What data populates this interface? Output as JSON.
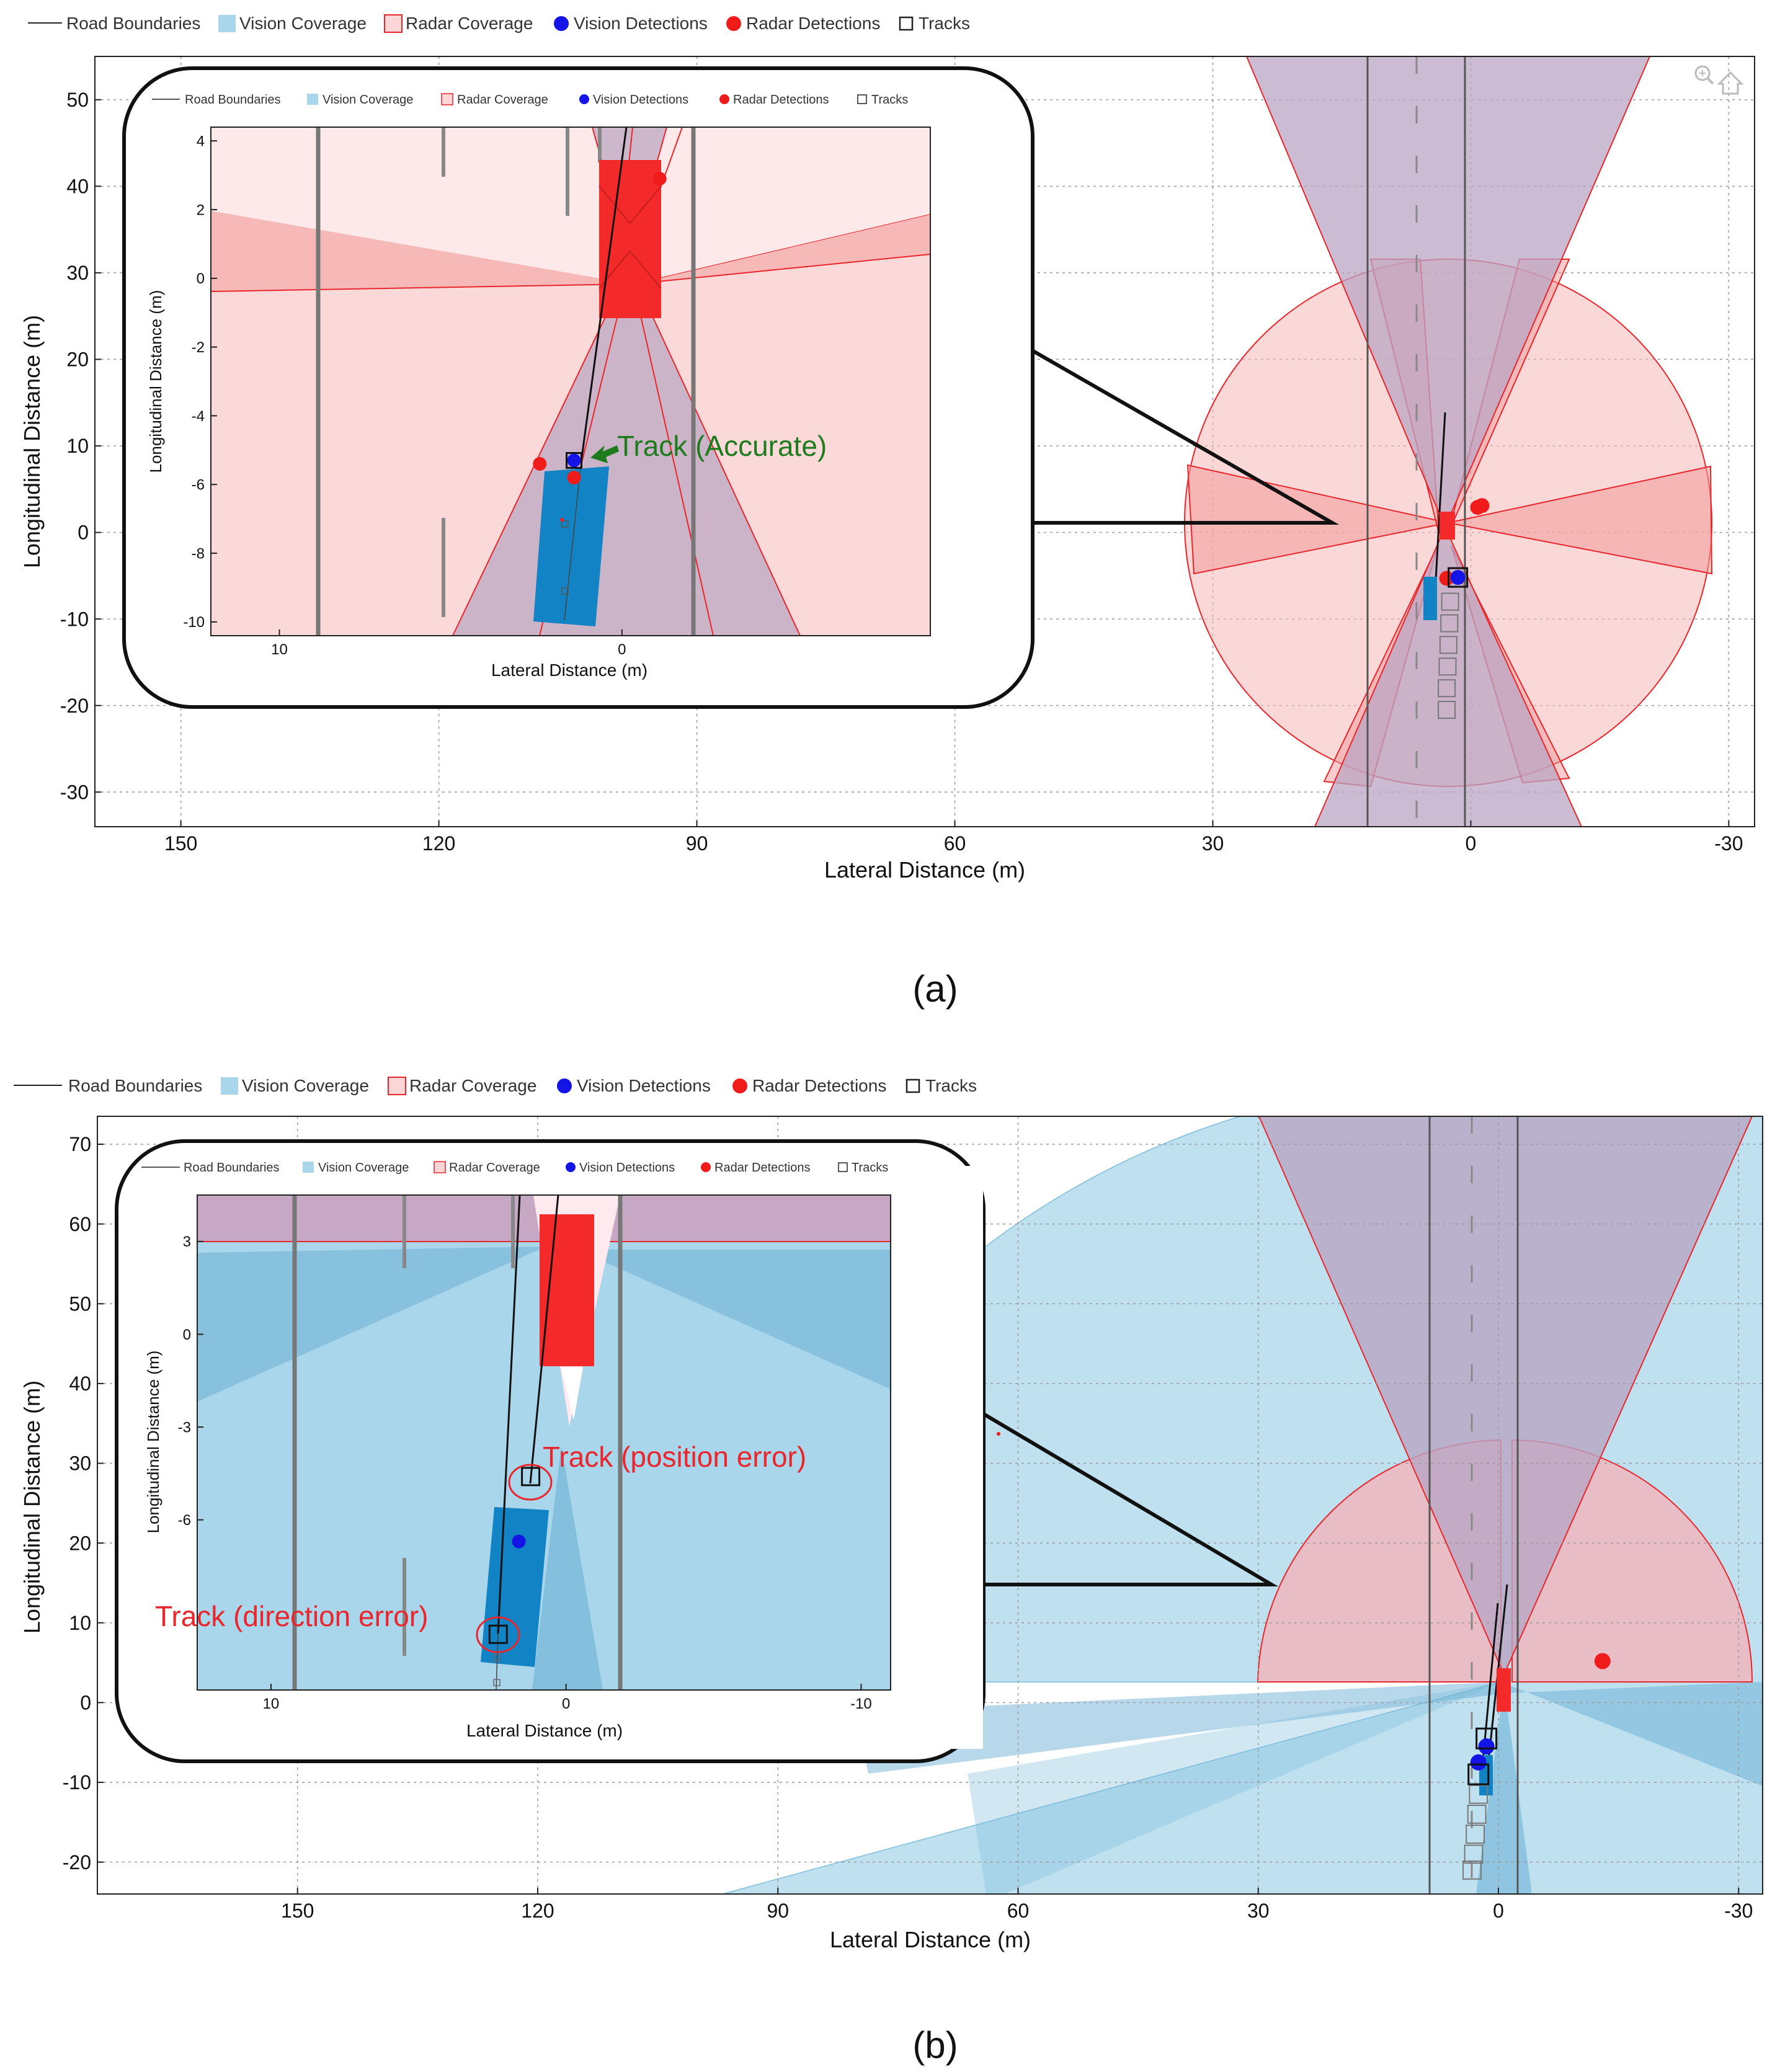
{
  "colors": {
    "radar_fill": "#f7b8b8",
    "radar_stroke": "#e8262b",
    "vision_fill": "#a9d6ea",
    "vision_dark": "#5fa9d1",
    "overlap": "#c9b4c7",
    "vision_det": "#1414e6",
    "radar_det": "#f01c1c",
    "ego_blue": "#1283c4",
    "target_red": "#f42a2a",
    "grid": "#9a9a9a",
    "annot_green": "#1e7b1e",
    "annot_red": "#e8262b"
  },
  "legend": [
    "Road Boundaries",
    "Vision Coverage",
    "Radar Coverage",
    "Vision Detections",
    "Radar Detections",
    "Tracks"
  ],
  "toolbar": {
    "zoom_icon": "zoom-in-icon",
    "home_icon": "home-icon"
  },
  "chart_data": [
    {
      "id": "a",
      "type": "scatter",
      "panel_label": "(a)",
      "xlabel": "Lateral Distance (m)",
      "ylabel": "Longitudinal Distance (m)",
      "xlim": [
        160,
        -33
      ],
      "ylim": [
        -34,
        55
      ],
      "xticks": [
        150,
        120,
        90,
        60,
        30,
        0,
        -30
      ],
      "yticks": [
        50,
        40,
        30,
        20,
        10,
        0,
        -10,
        -20,
        -30
      ],
      "road_boundaries_x": [
        10,
        -2
      ],
      "lane_marker_x": 4,
      "vision_detections": [
        [
          1.5,
          -5.2
        ]
      ],
      "radar_detections": [
        [
          2.8,
          -5.3
        ],
        [
          -0.8,
          2.9
        ],
        [
          -1.3,
          3.1
        ]
      ],
      "tracks": [
        [
          1.5,
          -5.2
        ]
      ],
      "track_history": [
        [
          2.4,
          -8
        ],
        [
          2.5,
          -10.5
        ],
        [
          2.6,
          -13
        ],
        [
          2.7,
          -15.5
        ],
        [
          2.8,
          -18
        ],
        [
          2.8,
          -20.5
        ]
      ],
      "inset": {
        "xlabel": "Lateral Distance (m)",
        "ylabel": "Longitudinal Distance (m)",
        "xlim": [
          12,
          -9
        ],
        "ylim": [
          -10.4,
          4.4
        ],
        "xticks": [
          10,
          0
        ],
        "yticks": [
          4,
          2,
          0,
          -2,
          -4,
          -6,
          -8,
          -10
        ],
        "vision_detections": [
          [
            1.4,
            -5.3
          ]
        ],
        "radar_detections": [
          [
            2.4,
            -5.4
          ],
          [
            1.4,
            -5.8
          ],
          [
            -1.1,
            2.9
          ]
        ],
        "tracks": [
          [
            1.4,
            -5.3
          ]
        ],
        "annotation": "Track (Accurate)"
      }
    },
    {
      "id": "b",
      "type": "scatter",
      "panel_label": "(b)",
      "xlabel": "Lateral Distance (m)",
      "ylabel": "Longitudinal Distance (m)",
      "xlim": [
        175,
        -33
      ],
      "ylim": [
        -24,
        73.5
      ],
      "xticks": [
        150,
        120,
        90,
        60,
        30,
        0,
        -30
      ],
      "yticks": [
        70,
        60,
        50,
        40,
        30,
        20,
        10,
        0,
        -10,
        -20
      ],
      "road_boundaries_x": [
        9,
        -2
      ],
      "lane_marker_x": 3.5,
      "vision_detections": [
        [
          1.5,
          -5.5
        ],
        [
          2.5,
          -7.5
        ]
      ],
      "radar_detections": [
        [
          -13,
          5.2
        ]
      ],
      "tracks": [
        [
          1.5,
          -4.5
        ],
        [
          2.5,
          -9
        ]
      ],
      "track_history": [
        [
          2.5,
          -11.5
        ],
        [
          2.7,
          -14
        ],
        [
          2.9,
          -16.5
        ],
        [
          3.1,
          -19
        ],
        [
          3.3,
          -21
        ]
      ],
      "inset": {
        "xlabel": "Lateral Distance (m)",
        "ylabel": "Longitudinal Distance (m)",
        "xlim": [
          12.5,
          -11
        ],
        "ylim": [
          -11.5,
          4.5
        ],
        "xticks": [
          10,
          0,
          -10
        ],
        "yticks": [
          3,
          0,
          -3,
          -6
        ],
        "vision_detections": [
          [
            1.6,
            -6.7
          ]
        ],
        "tracks": [
          [
            1.2,
            -4.6
          ],
          [
            2.3,
            -9.7
          ]
        ],
        "annotations": [
          "Track (position error)",
          "Track (direction error)"
        ]
      }
    }
  ]
}
